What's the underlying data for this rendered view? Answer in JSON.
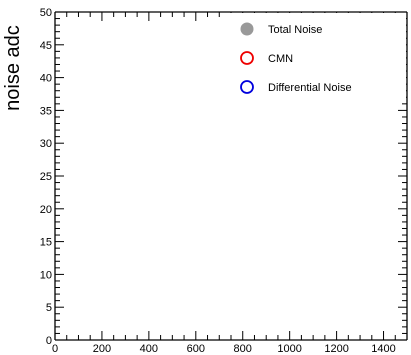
{
  "chart_data": {
    "type": "scatter",
    "title": "",
    "xlabel": "",
    "ylabel": "noise adc",
    "xlim": [
      0,
      1500
    ],
    "ylim": [
      0,
      50
    ],
    "x_ticks": [
      0,
      200,
      400,
      600,
      800,
      1000,
      1200,
      1400
    ],
    "x_tick_labels": [
      "0",
      "200",
      "400",
      "600",
      "800",
      "1000",
      "1200",
      "1400"
    ],
    "y_ticks": [
      0,
      5,
      10,
      15,
      20,
      25,
      30,
      35,
      40,
      45,
      50
    ],
    "y_tick_labels": [
      "0",
      "5",
      "10",
      "15",
      "20",
      "25",
      "30",
      "35",
      "40",
      "45",
      "50"
    ],
    "grid": false,
    "legend_position": "top-right",
    "series": [
      {
        "name": "Total Noise",
        "marker": "filled-circle",
        "color": "#999999",
        "points": []
      },
      {
        "name": "CMN",
        "marker": "open-circle",
        "color": "#ee0000",
        "points": []
      },
      {
        "name": "Differential Noise",
        "marker": "open-circle",
        "color": "#0000dd",
        "points": []
      }
    ]
  }
}
